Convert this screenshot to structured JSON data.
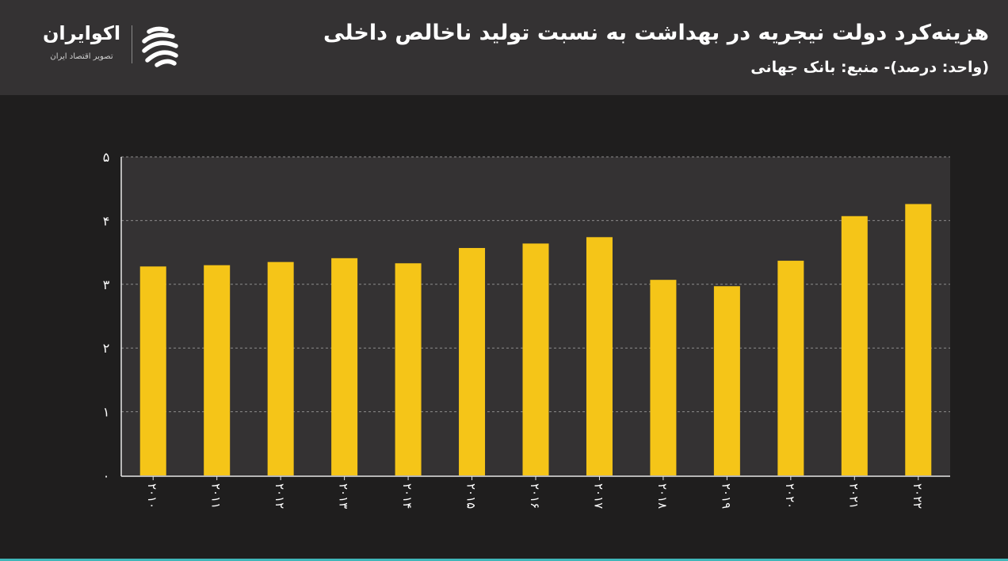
{
  "header": {
    "title": "هزینه‌کرد دولت نیجریه در بهداشت به نسبت تولید ناخالص داخلی",
    "subtitle": "(واحد: درصد)- منبع: بانک جهانی"
  },
  "logo": {
    "name": "اکوایران",
    "tagline": "تصویر اقتصاد ایران",
    "icon": "ecoiran-logo-icon"
  },
  "colors": {
    "background": "#1f1e1e",
    "header": "#343233",
    "plot_area": "#343233",
    "bar": "#f5c518",
    "text": "#ffffff",
    "accent_line": "#3fb6b9"
  },
  "chart_data": {
    "type": "bar",
    "categories": [
      "۲۰۱۰",
      "۲۰۱۱",
      "۲۰۱۲",
      "۲۰۱۳",
      "۲۰۱۴",
      "۲۰۱۵",
      "۲۰۱۶",
      "۲۰۱۷",
      "۲۰۱۸",
      "۲۰۱۹",
      "۲۰۲۰",
      "۲۰۲۱",
      "۲۰۲۲"
    ],
    "values": [
      3.28,
      3.3,
      3.35,
      3.41,
      3.33,
      3.57,
      3.64,
      3.74,
      3.07,
      2.97,
      3.37,
      4.07,
      4.26
    ],
    "yticks": [
      "۰",
      "۱",
      "۲",
      "۳",
      "۴",
      "۵"
    ],
    "ylim": [
      0,
      5
    ],
    "grid": true,
    "legend": "none"
  }
}
